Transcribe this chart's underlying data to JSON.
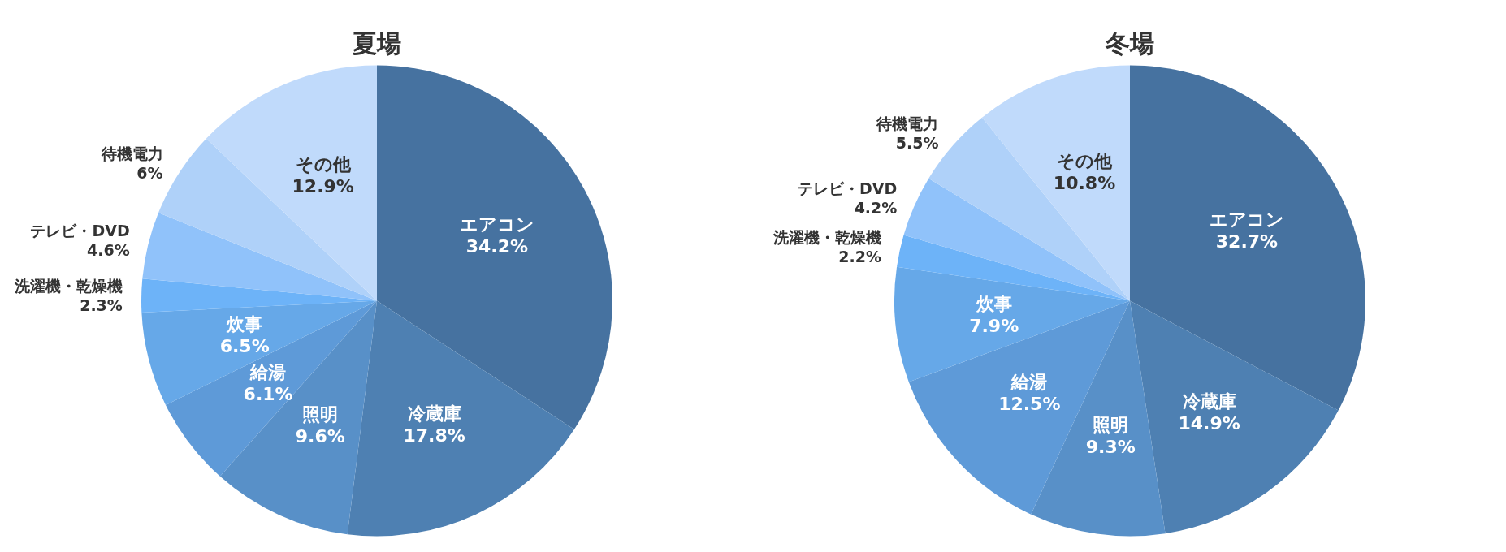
{
  "chart_data": [
    {
      "type": "pie",
      "title": "夏場",
      "categories": [
        "エアコン",
        "冷蔵庫",
        "照明",
        "給湯",
        "炊事",
        "洗濯機・乾燥機",
        "テレビ・DVD",
        "待機電力",
        "その他"
      ],
      "values": [
        34.2,
        17.8,
        9.6,
        6.1,
        6.5,
        2.3,
        4.6,
        6,
        12.9
      ],
      "value_labels": [
        "34.2%",
        "17.8%",
        "9.6%",
        "6.1%",
        "6.5%",
        "2.3%",
        "4.6%",
        "6%",
        "12.9%"
      ],
      "colors": [
        "#4672a0",
        "#4e80b2",
        "#5890c8",
        "#5e9ad8",
        "#66a8e8",
        "#6db3f8",
        "#90c2fa",
        "#afd1f9",
        "#c0dafb"
      ]
    },
    {
      "type": "pie",
      "title": "冬場",
      "categories": [
        "エアコン",
        "冷蔵庫",
        "照明",
        "給湯",
        "炊事",
        "洗濯機・乾燥機",
        "テレビ・DVD",
        "待機電力",
        "その他"
      ],
      "values": [
        32.7,
        14.9,
        9.3,
        12.5,
        7.9,
        2.2,
        4.2,
        5.5,
        10.8
      ],
      "value_labels": [
        "32.7%",
        "14.9%",
        "9.3%",
        "12.5%",
        "7.9%",
        "2.2%",
        "4.2%",
        "5.5%",
        "10.8%"
      ],
      "colors": [
        "#4672a0",
        "#4e80b2",
        "#5890c8",
        "#5e9ad8",
        "#66a8e8",
        "#6db3f8",
        "#90c2fa",
        "#afd1f9",
        "#c0dafb"
      ]
    }
  ]
}
